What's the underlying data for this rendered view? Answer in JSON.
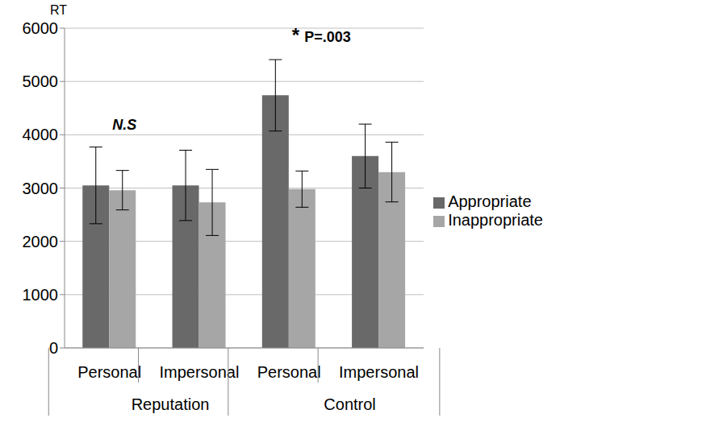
{
  "chart_data": {
    "type": "bar",
    "y_label": "RT",
    "categories": [
      "Personal",
      "Impersonal",
      "Personal",
      "Impersonal"
    ],
    "groups": [
      "Reputation",
      "Reputation",
      "Control",
      "Control"
    ],
    "series": [
      {
        "name": "Appropriate",
        "color": "#696969",
        "values": [
          3050,
          3050,
          4740,
          3600
        ],
        "error": [
          720,
          660,
          670,
          600
        ]
      },
      {
        "name": "Inappropriate",
        "color": "#a6a6a6",
        "values": [
          2960,
          2730,
          2980,
          3300
        ],
        "error": [
          370,
          620,
          340,
          560
        ]
      }
    ],
    "annotations": [
      {
        "category": 0,
        "text": "N.S",
        "style": "italic"
      },
      {
        "category": 2,
        "text": "*",
        "style": "normal"
      },
      {
        "category": 2,
        "text": "P=.003",
        "style": "normal"
      }
    ],
    "ylim": [
      0,
      6000
    ],
    "yticks": [
      0,
      1000,
      2000,
      3000,
      4000,
      5000,
      6000
    ],
    "grid": true,
    "legend": "right"
  }
}
